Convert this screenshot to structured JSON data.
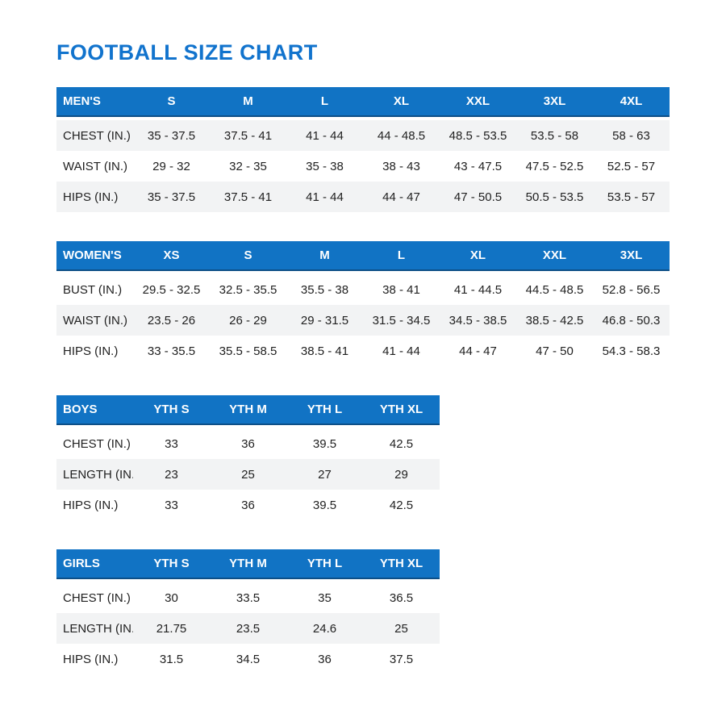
{
  "page": {
    "title": "FOOTBALL SIZE CHART"
  },
  "colors": {
    "title": "#1173cd",
    "header_bg": "#1173c4",
    "header_border": "#0d4f87",
    "header_text": "#ffffff",
    "shaded_row": "#f2f3f4",
    "text": "#212121"
  },
  "tables": [
    {
      "name": "mens",
      "header": [
        "MEN'S",
        "S",
        "M",
        "L",
        "XL",
        "XXL",
        "3XL",
        "4XL"
      ],
      "rows": [
        {
          "label": "CHEST (IN.)",
          "shaded": true,
          "values": [
            "35 - 37.5",
            "37.5 - 41",
            "41 - 44",
            "44 - 48.5",
            "48.5 - 53.5",
            "53.5 - 58",
            "58 - 63"
          ]
        },
        {
          "label": "WAIST (IN.)",
          "shaded": false,
          "values": [
            "29 - 32",
            "32 - 35",
            "35 - 38",
            "38 - 43",
            "43 - 47.5",
            "47.5 - 52.5",
            "52.5 - 57"
          ]
        },
        {
          "label": "HIPS (IN.)",
          "shaded": true,
          "values": [
            "35 - 37.5",
            "37.5 - 41",
            "41 - 44",
            "44 - 47",
            "47 - 50.5",
            "50.5 - 53.5",
            "53.5 - 57"
          ]
        }
      ]
    },
    {
      "name": "womens",
      "header": [
        "WOMEN'S",
        "XS",
        "S",
        "M",
        "L",
        "XL",
        "XXL",
        "3XL"
      ],
      "rows": [
        {
          "label": "BUST (IN.)",
          "shaded": false,
          "values": [
            "29.5 - 32.5",
            "32.5 - 35.5",
            "35.5 - 38",
            "38 - 41",
            "41 - 44.5",
            "44.5 - 48.5",
            "52.8 - 56.5"
          ]
        },
        {
          "label": "WAIST (IN.)",
          "shaded": true,
          "values": [
            "23.5 - 26",
            "26 - 29",
            "29 - 31.5",
            "31.5 - 34.5",
            "34.5 - 38.5",
            "38.5 - 42.5",
            "46.8 - 50.3"
          ]
        },
        {
          "label": "HIPS (IN.)",
          "shaded": false,
          "values": [
            "33 - 35.5",
            "35.5 - 58.5",
            "38.5 - 41",
            "41 - 44",
            "44 - 47",
            "47 - 50",
            "54.3 - 58.3"
          ]
        }
      ]
    },
    {
      "name": "boys",
      "header": [
        "BOYS",
        "YTH S",
        "YTH M",
        "YTH L",
        "YTH XL"
      ],
      "rows": [
        {
          "label": "CHEST (IN.)",
          "shaded": false,
          "values": [
            "33",
            "36",
            "39.5",
            "42.5"
          ]
        },
        {
          "label": "LENGTH (IN.)",
          "shaded": true,
          "values": [
            "23",
            "25",
            "27",
            "29"
          ]
        },
        {
          "label": "HIPS (IN.)",
          "shaded": false,
          "values": [
            "33",
            "36",
            "39.5",
            "42.5"
          ]
        }
      ]
    },
    {
      "name": "girls",
      "header": [
        "GIRLS",
        "YTH S",
        "YTH M",
        "YTH L",
        "YTH XL"
      ],
      "rows": [
        {
          "label": "CHEST (IN.)",
          "shaded": false,
          "values": [
            "30",
            "33.5",
            "35",
            "36.5"
          ]
        },
        {
          "label": "LENGTH (IN.)",
          "shaded": true,
          "values": [
            "21.75",
            "23.5",
            "24.6",
            "25"
          ]
        },
        {
          "label": "HIPS (IN.)",
          "shaded": false,
          "values": [
            "31.5",
            "34.5",
            "36",
            "37.5"
          ]
        }
      ]
    }
  ]
}
